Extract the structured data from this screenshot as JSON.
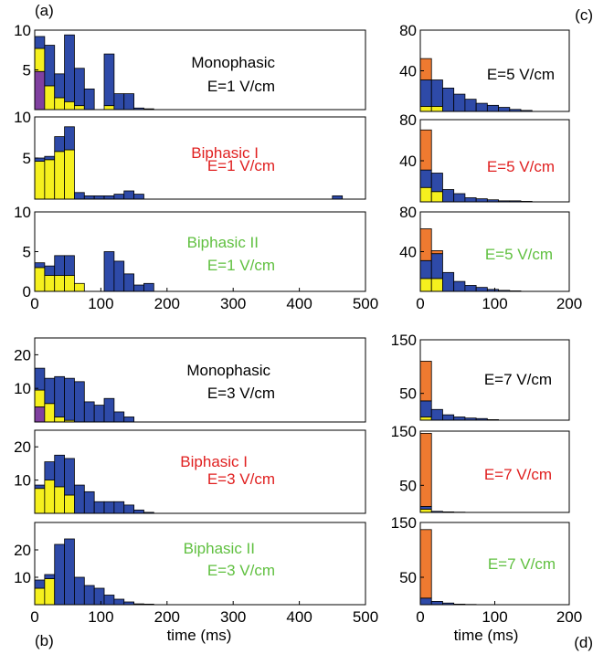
{
  "panel_letters": {
    "a": "(a)",
    "b": "(b)",
    "c": "(c)",
    "d": "(d)"
  },
  "xlabel": "time (ms)",
  "colors": {
    "purple": "#8040a0",
    "yellow": "#f5f01e",
    "orange": "#ef7a30",
    "blue": "#2e4aa8"
  },
  "chart_data": [
    {
      "id": "a1",
      "type": "bar",
      "stacked": true,
      "bin_width": 15,
      "xlim": [
        0,
        500
      ],
      "ylim": [
        0,
        10
      ],
      "yticks": [
        5,
        10
      ],
      "xticks_shown": false,
      "annotation": [
        "Monophasic",
        "E=1 V/cm"
      ],
      "annotation_color": "#000000",
      "bins": [
        7.5,
        22.5,
        37.5,
        52.5,
        67.5,
        82.5,
        97.5,
        112.5,
        127.5,
        142.5,
        157.5,
        172.5
      ],
      "series": [
        {
          "color": "purple",
          "values": [
            4.8,
            0,
            0,
            0,
            0,
            0,
            0,
            0,
            0,
            0,
            0,
            0
          ]
        },
        {
          "color": "yellow",
          "values": [
            2.9,
            3.0,
            1.5,
            1.0,
            0.5,
            0,
            0,
            0.5,
            0,
            0,
            0,
            0
          ]
        },
        {
          "color": "blue",
          "values": [
            1.5,
            5.1,
            3.0,
            8.4,
            4.7,
            2.6,
            0,
            6.5,
            2.0,
            2.0,
            0.2,
            0.1
          ]
        }
      ]
    },
    {
      "id": "a2",
      "type": "bar",
      "stacked": true,
      "bin_width": 15,
      "xlim": [
        0,
        500
      ],
      "ylim": [
        0,
        10
      ],
      "yticks": [
        5,
        10
      ],
      "xticks_shown": false,
      "annotation": [
        "Biphasic I",
        "E=1 V/cm"
      ],
      "annotation_color": "#e02020",
      "bins": [
        7.5,
        22.5,
        37.5,
        52.5,
        67.5,
        82.5,
        97.5,
        112.5,
        127.5,
        142.5,
        157.5,
        172.5,
        457.5
      ],
      "series": [
        {
          "color": "yellow",
          "values": [
            4.6,
            4.8,
            5.8,
            6.0,
            0,
            0,
            0,
            0,
            0,
            0,
            0,
            0,
            0
          ]
        },
        {
          "color": "blue",
          "values": [
            0.4,
            0.4,
            1.8,
            2.8,
            0.8,
            0.4,
            0.4,
            0.4,
            0.6,
            1.0,
            0.6,
            0.0,
            0.4
          ]
        }
      ]
    },
    {
      "id": "a3",
      "type": "bar",
      "stacked": true,
      "bin_width": 15,
      "xlim": [
        0,
        500
      ],
      "ylim": [
        0,
        10
      ],
      "yticks": [
        0,
        5,
        10
      ],
      "xticks_shown": true,
      "xticks": [
        0,
        100,
        200,
        300,
        400,
        500
      ],
      "annotation": [
        "Biphasic II",
        "E=1 V/cm"
      ],
      "annotation_color": "#60c040",
      "bins": [
        7.5,
        22.5,
        37.5,
        52.5,
        67.5,
        82.5,
        97.5,
        112.5,
        127.5,
        142.5,
        157.5,
        172.5
      ],
      "series": [
        {
          "color": "yellow",
          "values": [
            3.0,
            2.0,
            2.0,
            2.0,
            1.0,
            0,
            0,
            0,
            0,
            0,
            0,
            0
          ]
        },
        {
          "color": "blue",
          "values": [
            0.6,
            1.2,
            2.5,
            2.5,
            0,
            0,
            0,
            5.0,
            3.8,
            2.2,
            0.8,
            1.0
          ]
        }
      ]
    },
    {
      "id": "b1",
      "type": "bar",
      "stacked": true,
      "bin_width": 15,
      "xlim": [
        0,
        500
      ],
      "ylim": [
        0,
        25
      ],
      "yticks": [
        10,
        20
      ],
      "xticks_shown": false,
      "annotation": [
        "Monophasic",
        "E=3 V/cm"
      ],
      "annotation_color": "#000000",
      "bins": [
        7.5,
        22.5,
        37.5,
        52.5,
        67.5,
        82.5,
        97.5,
        112.5,
        127.5,
        142.5
      ],
      "series": [
        {
          "color": "purple",
          "values": [
            4.5,
            0,
            0,
            0,
            0,
            0,
            0,
            0,
            0,
            0
          ]
        },
        {
          "color": "yellow",
          "values": [
            5.0,
            5.5,
            1.5,
            0.5,
            0,
            0,
            0,
            0,
            0,
            0
          ]
        },
        {
          "color": "blue",
          "values": [
            6.5,
            7.5,
            12.0,
            12.5,
            12.0,
            6.0,
            5.0,
            7.0,
            3.0,
            1.5
          ]
        }
      ]
    },
    {
      "id": "b2",
      "type": "bar",
      "stacked": true,
      "bin_width": 15,
      "xlim": [
        0,
        500
      ],
      "ylim": [
        0,
        25
      ],
      "yticks": [
        10,
        20
      ],
      "xticks_shown": false,
      "annotation": [
        "Biphasic I",
        "E=3 V/cm"
      ],
      "annotation_color": "#e02020",
      "bins": [
        7.5,
        22.5,
        37.5,
        52.5,
        67.5,
        82.5,
        97.5,
        112.5,
        127.5,
        142.5,
        157.5,
        172.5
      ],
      "series": [
        {
          "color": "yellow",
          "values": [
            7.5,
            10.0,
            8.0,
            5.5,
            0,
            0,
            0,
            0,
            0,
            0,
            0,
            0
          ]
        },
        {
          "color": "blue",
          "values": [
            1.0,
            5.5,
            9.5,
            11.0,
            8.5,
            6.5,
            3.5,
            3.5,
            3.5,
            2.5,
            1.0,
            0.3
          ]
        }
      ]
    },
    {
      "id": "b3",
      "type": "bar",
      "stacked": true,
      "bin_width": 15,
      "xlim": [
        0,
        500
      ],
      "ylim": [
        0,
        30
      ],
      "yticks": [
        10,
        20
      ],
      "xticks_shown": true,
      "xticks": [
        0,
        100,
        200,
        300,
        400,
        500
      ],
      "annotation": [
        "Biphasic II",
        "E=3 V/cm"
      ],
      "annotation_color": "#60c040",
      "bins": [
        7.5,
        22.5,
        37.5,
        52.5,
        67.5,
        82.5,
        97.5,
        112.5,
        127.5,
        142.5,
        157.5,
        172.5
      ],
      "series": [
        {
          "color": "yellow",
          "values": [
            6.0,
            9.5,
            0,
            0,
            0,
            0,
            0,
            0,
            0,
            0,
            0,
            0
          ]
        },
        {
          "color": "blue",
          "values": [
            3.0,
            1.5,
            22.0,
            24.0,
            10.0,
            7.0,
            6.0,
            3.5,
            2.0,
            1.0,
            0.3,
            0.2
          ]
        }
      ]
    },
    {
      "id": "c1",
      "type": "bar",
      "stacked": true,
      "bin_width": 15,
      "xlim": [
        0,
        200
      ],
      "ylim": [
        0,
        80
      ],
      "yticks": [
        40,
        80
      ],
      "xticks_shown": false,
      "annotation": [
        "E=5 V/cm"
      ],
      "annotation_color": "#000000",
      "bins": [
        7.5,
        22.5,
        37.5,
        52.5,
        67.5,
        82.5,
        97.5,
        112.5,
        127.5,
        142.5
      ],
      "series": [
        {
          "color": "yellow",
          "values": [
            5,
            5,
            0,
            0,
            0,
            0,
            0,
            0,
            0,
            0
          ]
        },
        {
          "color": "blue",
          "values": [
            26,
            26,
            23,
            17,
            12,
            8,
            6,
            4,
            2,
            1
          ]
        },
        {
          "color": "orange",
          "values": [
            21,
            0,
            0,
            0,
            0,
            0,
            0,
            0,
            0,
            0
          ]
        }
      ]
    },
    {
      "id": "c2",
      "type": "bar",
      "stacked": true,
      "bin_width": 15,
      "xlim": [
        0,
        200
      ],
      "ylim": [
        0,
        80
      ],
      "yticks": [
        40,
        80
      ],
      "xticks_shown": false,
      "annotation": [
        "E=5 V/cm"
      ],
      "annotation_color": "#e02020",
      "bins": [
        7.5,
        22.5,
        37.5,
        52.5,
        67.5,
        82.5,
        97.5,
        112.5,
        127.5,
        142.5
      ],
      "series": [
        {
          "color": "yellow",
          "values": [
            14,
            10,
            0,
            0,
            0,
            0,
            0,
            0,
            0,
            0
          ]
        },
        {
          "color": "blue",
          "values": [
            17,
            18,
            12,
            8,
            4,
            3,
            2,
            1,
            1,
            0.5
          ]
        },
        {
          "color": "orange",
          "values": [
            39,
            0,
            0,
            0,
            0,
            0,
            0,
            0,
            0,
            0
          ]
        }
      ]
    },
    {
      "id": "c3",
      "type": "bar",
      "stacked": true,
      "bin_width": 15,
      "xlim": [
        0,
        200
      ],
      "ylim": [
        0,
        80
      ],
      "yticks": [
        40,
        80
      ],
      "xticks_shown": true,
      "xticks": [
        0,
        100,
        200
      ],
      "annotation": [
        "E=5 V/cm"
      ],
      "annotation_color": "#60c040",
      "bins": [
        7.5,
        22.5,
        37.5,
        52.5,
        67.5,
        82.5,
        97.5,
        112.5,
        127.5
      ],
      "series": [
        {
          "color": "yellow",
          "values": [
            13,
            13,
            0,
            0,
            0,
            0,
            0,
            0,
            0
          ]
        },
        {
          "color": "blue",
          "values": [
            18,
            25,
            19,
            10,
            6,
            4,
            2,
            1,
            0.5
          ]
        },
        {
          "color": "orange",
          "values": [
            32,
            3,
            0,
            0,
            0,
            0,
            0,
            0,
            0
          ]
        }
      ]
    },
    {
      "id": "d1",
      "type": "bar",
      "stacked": true,
      "bin_width": 15,
      "xlim": [
        0,
        200
      ],
      "ylim": [
        0,
        150
      ],
      "yticks": [
        50,
        150
      ],
      "xticks_shown": false,
      "annotation": [
        "E=7 V/cm"
      ],
      "annotation_color": "#000000",
      "bins": [
        7.5,
        22.5,
        37.5,
        52.5,
        67.5,
        82.5,
        97.5
      ],
      "series": [
        {
          "color": "yellow",
          "values": [
            6,
            0,
            0,
            0,
            0,
            0,
            0
          ]
        },
        {
          "color": "blue",
          "values": [
            30,
            20,
            10,
            6,
            4,
            3,
            1
          ]
        },
        {
          "color": "orange",
          "values": [
            74,
            0,
            0,
            0,
            0,
            0,
            0
          ]
        }
      ]
    },
    {
      "id": "d2",
      "type": "bar",
      "stacked": true,
      "bin_width": 15,
      "xlim": [
        0,
        200
      ],
      "ylim": [
        0,
        150
      ],
      "yticks": [
        50,
        150
      ],
      "xticks_shown": false,
      "annotation": [
        "E=7 V/cm"
      ],
      "annotation_color": "#e02020",
      "bins": [
        7.5,
        22.5,
        37.5,
        52.5
      ],
      "series": [
        {
          "color": "yellow",
          "values": [
            6,
            0,
            0,
            0
          ]
        },
        {
          "color": "blue",
          "values": [
            5,
            2,
            1,
            0.5
          ]
        },
        {
          "color": "orange",
          "values": [
            135,
            0,
            0,
            0
          ]
        }
      ]
    },
    {
      "id": "d3",
      "type": "bar",
      "stacked": true,
      "bin_width": 15,
      "xlim": [
        0,
        200
      ],
      "ylim": [
        0,
        150
      ],
      "yticks": [
        50,
        150
      ],
      "xticks_shown": true,
      "xticks": [
        0,
        100,
        200
      ],
      "annotation": [
        "E=7 V/cm"
      ],
      "annotation_color": "#60c040",
      "bins": [
        7.5,
        22.5,
        37.5,
        52.5,
        67.5
      ],
      "series": [
        {
          "color": "yellow",
          "values": [
            0,
            0,
            0,
            0,
            0
          ]
        },
        {
          "color": "blue",
          "values": [
            12,
            6,
            3,
            1,
            0.5
          ]
        },
        {
          "color": "orange",
          "values": [
            125,
            0,
            0,
            0,
            0
          ]
        }
      ]
    }
  ]
}
